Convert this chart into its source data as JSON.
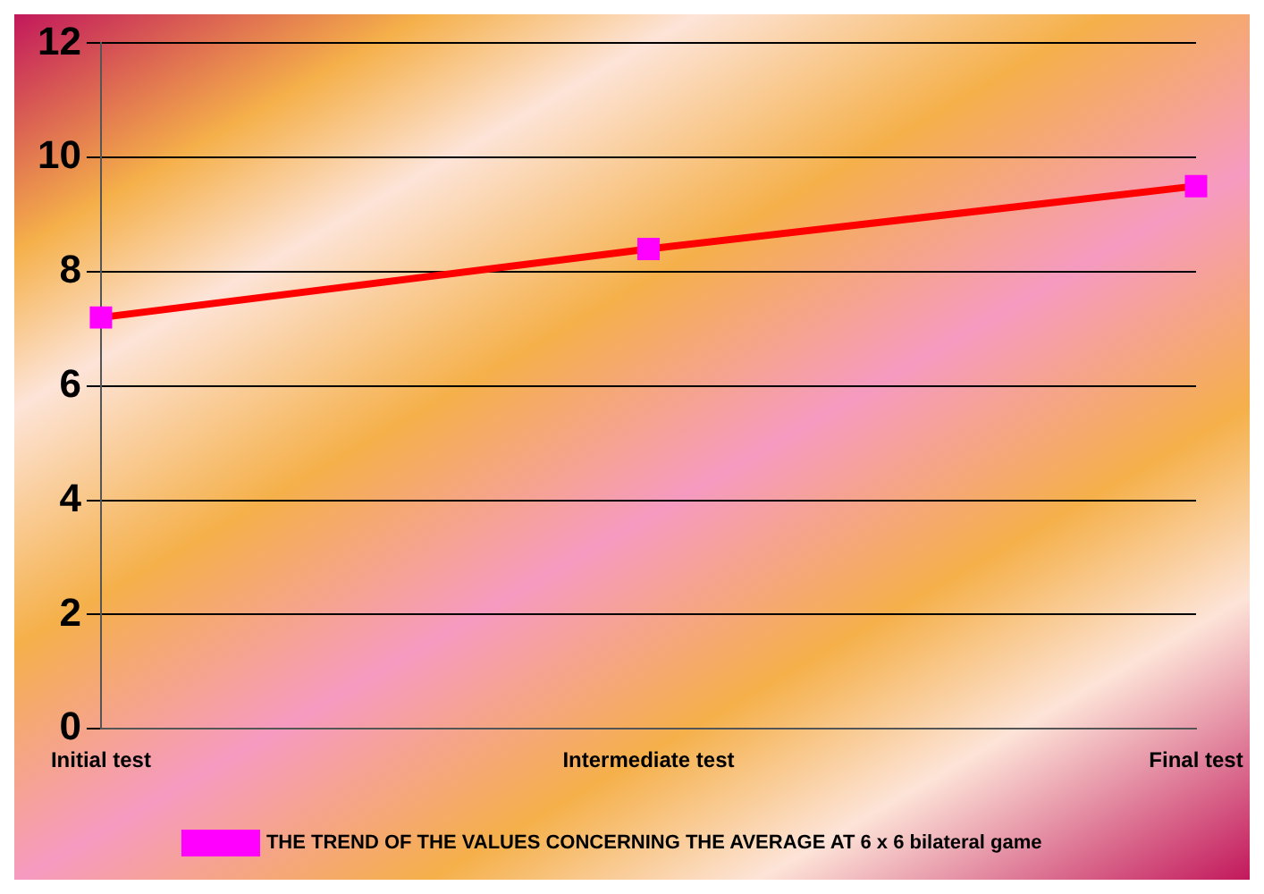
{
  "chart_data": {
    "type": "line",
    "categories": [
      "Initial test",
      "Intermediate test",
      "Final test"
    ],
    "series": [
      {
        "name": "THE TREND OF THE VALUES CONCERNING THE AVERAGE AT 6 x 6 bilateral game",
        "color": "#ff0000",
        "values": [
          7.2,
          8.4,
          9.5
        ]
      }
    ],
    "ylim": [
      0,
      12
    ],
    "yticks": [
      0,
      2,
      4,
      6,
      8,
      10,
      12
    ],
    "grid": "y",
    "legend": "bottom",
    "marker": "square",
    "line_style": "solid"
  }
}
